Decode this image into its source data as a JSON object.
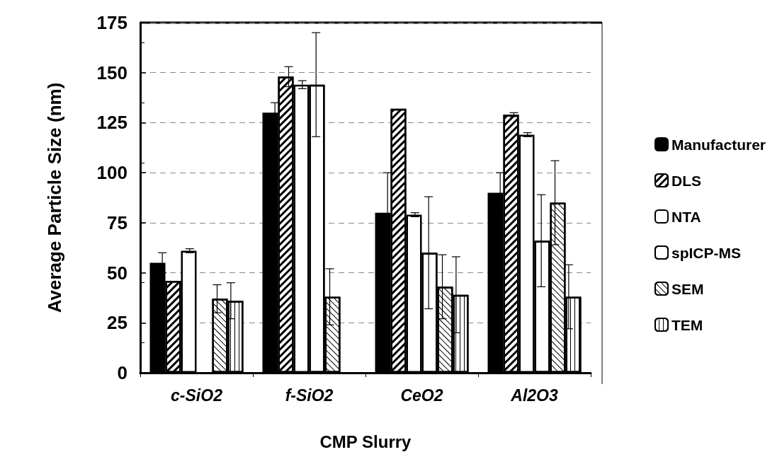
{
  "chart_data": {
    "type": "bar",
    "xlabel": "CMP Slurry",
    "ylabel": "Average Particle Size (nm)",
    "categories": [
      "c-SiO2",
      "f-SiO2",
      "CeO2",
      "Al2O3"
    ],
    "series": [
      {
        "name": "Manufacturer",
        "color": "#000000",
        "values": [
          55,
          130,
          80,
          90
        ],
        "errors": [
          5,
          5,
          20,
          10
        ]
      },
      {
        "name": "DLS",
        "color": "#ffffff",
        "values": [
          46,
          148,
          132,
          129
        ],
        "errors": [
          null,
          5,
          null,
          1
        ]
      },
      {
        "name": "NTA",
        "color": "#ffffff",
        "values": [
          61,
          144,
          79,
          119
        ],
        "errors": [
          1,
          2,
          1,
          1
        ]
      },
      {
        "name": "spICP-MS",
        "color": "#ffffff",
        "values": [
          null,
          144,
          60,
          66
        ],
        "errors": [
          null,
          26,
          28,
          23
        ]
      },
      {
        "name": "SEM",
        "color": "#ffffff",
        "values": [
          37,
          38,
          43,
          85
        ],
        "errors": [
          7,
          14,
          16,
          21
        ]
      },
      {
        "name": "TEM",
        "color": "#ffffff",
        "values": [
          36,
          null,
          39,
          38
        ],
        "errors": [
          9,
          null,
          19,
          16
        ]
      }
    ],
    "ylim": [
      0,
      175
    ],
    "yticks": [
      0,
      25,
      50,
      75,
      100,
      125,
      150,
      175
    ],
    "grid": "y",
    "legend": "right"
  }
}
